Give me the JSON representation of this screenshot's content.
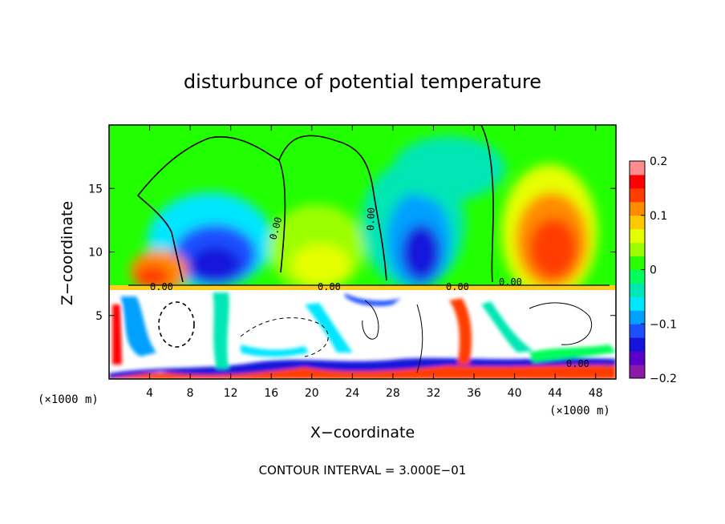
{
  "chart_data": {
    "type": "heatmap",
    "title": "disturbunce of potential temperature",
    "xlabel": "X−coordinate",
    "ylabel": "Z−coordinate",
    "x_unit": "(×1000 m)",
    "z_unit": "(×1000 m)",
    "xlim": [
      0,
      50
    ],
    "ylim": [
      0,
      20
    ],
    "xticks": [
      4,
      8,
      12,
      16,
      20,
      24,
      28,
      32,
      36,
      40,
      44,
      48
    ],
    "xtick_labels": [
      "4",
      "8",
      "12",
      "16",
      "20",
      "24",
      "28",
      "32",
      "36",
      "40",
      "44",
      "48"
    ],
    "yticks": [
      5,
      10,
      15
    ],
    "ytick_labels": [
      "5",
      "10",
      "15"
    ],
    "colorbar": {
      "range": [
        -0.2,
        0.2
      ],
      "ticks": [
        0.2,
        0.1,
        0,
        -0.1,
        -0.2
      ],
      "tick_labels": [
        "0.2",
        "0.1",
        "0",
        "−0.1",
        "−0.2"
      ],
      "colors": [
        "#8b1aa8",
        "#5a00c8",
        "#1414dc",
        "#1e50ff",
        "#00a0ff",
        "#00e6ff",
        "#00e6b4",
        "#00ff5a",
        "#28ff00",
        "#9cff00",
        "#e6ff00",
        "#ffc800",
        "#ff8c00",
        "#ff3c00",
        "#ff0000",
        "#ff8c8c"
      ]
    },
    "contour_labels": [
      "0.00",
      "0.00",
      "0.00",
      "0.00",
      "0.00",
      "0.00",
      "0.00"
    ],
    "note": "CONTOUR INTERVAL = 3.000E−01"
  }
}
